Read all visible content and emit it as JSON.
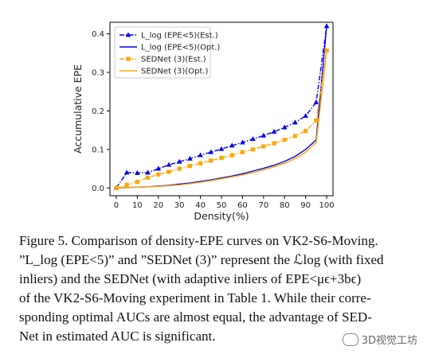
{
  "chart_data": {
    "type": "line",
    "title": "",
    "xlabel": "Density(%)",
    "ylabel": "Accumulative EPE",
    "xlim": [
      -3,
      103
    ],
    "ylim": [
      -0.02,
      0.43
    ],
    "xticks": [
      0,
      10,
      20,
      30,
      40,
      50,
      60,
      70,
      80,
      90,
      100
    ],
    "yticks": [
      0.0,
      0.1,
      0.2,
      0.3,
      0.4
    ],
    "ytick_labels": [
      "0.0",
      "0.1",
      "0.2",
      "0.3",
      "0.4"
    ],
    "legend_position": "top-left",
    "grid": false,
    "x": [
      0,
      5,
      10,
      15,
      20,
      25,
      30,
      35,
      40,
      45,
      50,
      55,
      60,
      65,
      70,
      75,
      80,
      85,
      90,
      95,
      100
    ],
    "series": [
      {
        "name": "L_log (EPE<5)(Est.)",
        "color": "#0000ee",
        "marker": "triangle",
        "line_style": "dashdot",
        "values": [
          0.0,
          0.04,
          0.039,
          0.04,
          0.05,
          0.06,
          0.068,
          0.076,
          0.085,
          0.093,
          0.101,
          0.11,
          0.118,
          0.127,
          0.136,
          0.146,
          0.157,
          0.17,
          0.187,
          0.222,
          0.42
        ]
      },
      {
        "name": "L_log (EPE<5)(Opt.)",
        "color": "#0000ee",
        "marker": "none",
        "line_style": "solid",
        "values": [
          0.0,
          0.001,
          0.002,
          0.003,
          0.005,
          0.007,
          0.01,
          0.013,
          0.017,
          0.021,
          0.026,
          0.031,
          0.037,
          0.044,
          0.051,
          0.059,
          0.069,
          0.082,
          0.1,
          0.125,
          0.42
        ]
      },
      {
        "name": "SEDNet (3)(Est.)",
        "color": "#ffa500",
        "marker": "square",
        "line_style": "dashdot",
        "values": [
          0.0,
          0.008,
          0.016,
          0.027,
          0.035,
          0.042,
          0.05,
          0.057,
          0.064,
          0.071,
          0.078,
          0.085,
          0.093,
          0.1,
          0.108,
          0.116,
          0.125,
          0.135,
          0.148,
          0.175,
          0.357
        ]
      },
      {
        "name": "SEDNet (3)(Opt.)",
        "color": "#ffa500",
        "marker": "none",
        "line_style": "solid",
        "values": [
          0.0,
          0.001,
          0.002,
          0.003,
          0.004,
          0.006,
          0.008,
          0.011,
          0.015,
          0.019,
          0.024,
          0.029,
          0.034,
          0.04,
          0.047,
          0.055,
          0.064,
          0.076,
          0.093,
          0.118,
          0.357
        ]
      }
    ]
  },
  "caption": {
    "lines": [
      "Figure 5. Comparison of density-EPE curves on VK2-S6-Moving.",
      "”L_log (EPE<5)” and ”SEDNet (3)” represent the ℒlog (with fixed",
      "inliers) and the SEDNet (with adaptive inliers of EPE<μϵ+3bϵ)",
      "of the VK2-S6-Moving experiment in Table 1. While their corre-",
      "sponding optimal AUCs are almost equal, the advantage of SED-",
      "Net in estimated AUC is significant."
    ]
  },
  "watermark": {
    "text": "3D视觉工坊"
  }
}
